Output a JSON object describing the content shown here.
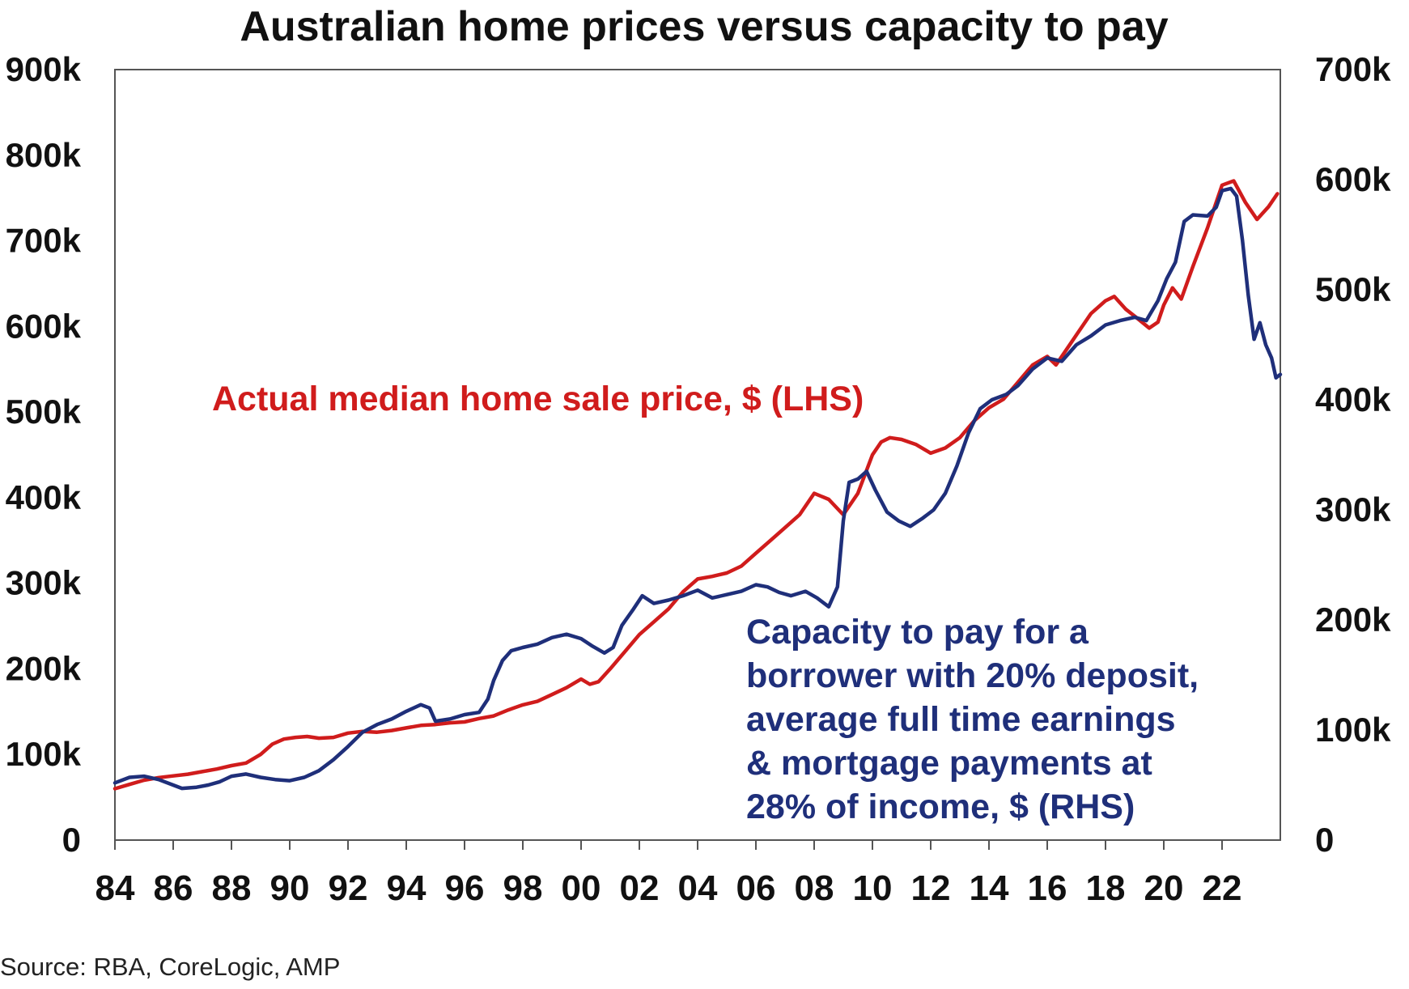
{
  "chart_data": {
    "type": "line",
    "title": "Australian home prices versus capacity to pay",
    "source": "Source: RBA, CoreLogic, AMP",
    "x_ticks": [
      "84",
      "86",
      "88",
      "90",
      "92",
      "94",
      "96",
      "98",
      "00",
      "02",
      "04",
      "06",
      "08",
      "10",
      "12",
      "14",
      "16",
      "18",
      "20",
      "22"
    ],
    "x_range": [
      1984,
      2024
    ],
    "y_left": {
      "range": [
        0,
        900000
      ],
      "ticks": [
        "0",
        "100k",
        "200k",
        "300k",
        "400k",
        "500k",
        "600k",
        "700k",
        "800k",
        "900k"
      ]
    },
    "y_right": {
      "range": [
        0,
        700000
      ],
      "ticks": [
        "0",
        "100k",
        "200k",
        "300k",
        "400k",
        "500k",
        "600k",
        "700k"
      ]
    },
    "grid": false,
    "series": [
      {
        "name": "Actual median home sale price, $ (LHS)",
        "axis": "left",
        "color": "#d01c1c",
        "points": [
          [
            1984.0,
            60000
          ],
          [
            1984.5,
            65000
          ],
          [
            1985.0,
            70000
          ],
          [
            1985.5,
            73000
          ],
          [
            1986.0,
            75000
          ],
          [
            1986.5,
            77000
          ],
          [
            1987.0,
            80000
          ],
          [
            1987.5,
            83000
          ],
          [
            1988.0,
            87000
          ],
          [
            1988.5,
            90000
          ],
          [
            1989.0,
            100000
          ],
          [
            1989.4,
            112000
          ],
          [
            1989.8,
            118000
          ],
          [
            1990.2,
            120000
          ],
          [
            1990.6,
            121000
          ],
          [
            1991.0,
            119000
          ],
          [
            1991.5,
            120000
          ],
          [
            1992.0,
            125000
          ],
          [
            1992.5,
            127000
          ],
          [
            1993.0,
            126000
          ],
          [
            1993.5,
            128000
          ],
          [
            1994.0,
            131000
          ],
          [
            1994.5,
            134000
          ],
          [
            1995.0,
            135000
          ],
          [
            1995.5,
            137000
          ],
          [
            1996.0,
            138000
          ],
          [
            1996.5,
            142000
          ],
          [
            1997.0,
            145000
          ],
          [
            1997.5,
            152000
          ],
          [
            1998.0,
            158000
          ],
          [
            1998.5,
            162000
          ],
          [
            1999.0,
            170000
          ],
          [
            1999.5,
            178000
          ],
          [
            2000.0,
            188000
          ],
          [
            2000.3,
            182000
          ],
          [
            2000.6,
            185000
          ],
          [
            2001.0,
            200000
          ],
          [
            2001.5,
            220000
          ],
          [
            2002.0,
            240000
          ],
          [
            2002.5,
            255000
          ],
          [
            2003.0,
            270000
          ],
          [
            2003.5,
            290000
          ],
          [
            2004.0,
            305000
          ],
          [
            2004.5,
            308000
          ],
          [
            2005.0,
            312000
          ],
          [
            2005.5,
            320000
          ],
          [
            2006.0,
            335000
          ],
          [
            2006.5,
            350000
          ],
          [
            2007.0,
            365000
          ],
          [
            2007.5,
            380000
          ],
          [
            2008.0,
            405000
          ],
          [
            2008.5,
            398000
          ],
          [
            2009.0,
            380000
          ],
          [
            2009.5,
            405000
          ],
          [
            2010.0,
            450000
          ],
          [
            2010.3,
            465000
          ],
          [
            2010.6,
            470000
          ],
          [
            2011.0,
            468000
          ],
          [
            2011.5,
            462000
          ],
          [
            2012.0,
            452000
          ],
          [
            2012.5,
            458000
          ],
          [
            2013.0,
            470000
          ],
          [
            2013.5,
            490000
          ],
          [
            2014.0,
            505000
          ],
          [
            2014.5,
            515000
          ],
          [
            2015.0,
            535000
          ],
          [
            2015.5,
            555000
          ],
          [
            2016.0,
            565000
          ],
          [
            2016.3,
            555000
          ],
          [
            2016.7,
            575000
          ],
          [
            2017.0,
            590000
          ],
          [
            2017.5,
            615000
          ],
          [
            2018.0,
            630000
          ],
          [
            2018.3,
            635000
          ],
          [
            2018.7,
            620000
          ],
          [
            2019.0,
            612000
          ],
          [
            2019.5,
            598000
          ],
          [
            2019.8,
            605000
          ],
          [
            2020.0,
            625000
          ],
          [
            2020.3,
            645000
          ],
          [
            2020.6,
            632000
          ],
          [
            2021.0,
            670000
          ],
          [
            2021.5,
            715000
          ],
          [
            2022.0,
            765000
          ],
          [
            2022.4,
            770000
          ],
          [
            2022.8,
            745000
          ],
          [
            2023.2,
            725000
          ],
          [
            2023.6,
            740000
          ],
          [
            2023.9,
            755000
          ]
        ]
      },
      {
        "name": "Capacity to pay for a borrower with 20% deposit, average full time earnings & mortgage payments at 28% of income, $ (RHS)",
        "axis": "right",
        "color": "#1f2f7a",
        "points": [
          [
            1984.0,
            52000
          ],
          [
            1984.5,
            57000
          ],
          [
            1985.0,
            58000
          ],
          [
            1985.5,
            55000
          ],
          [
            1986.0,
            50000
          ],
          [
            1986.3,
            47000
          ],
          [
            1986.8,
            48000
          ],
          [
            1987.2,
            50000
          ],
          [
            1987.6,
            53000
          ],
          [
            1988.0,
            58000
          ],
          [
            1988.5,
            60000
          ],
          [
            1989.0,
            57000
          ],
          [
            1989.5,
            55000
          ],
          [
            1990.0,
            54000
          ],
          [
            1990.5,
            57000
          ],
          [
            1991.0,
            63000
          ],
          [
            1991.5,
            73000
          ],
          [
            1992.0,
            85000
          ],
          [
            1992.5,
            98000
          ],
          [
            1993.0,
            105000
          ],
          [
            1993.5,
            110000
          ],
          [
            1994.0,
            117000
          ],
          [
            1994.5,
            123000
          ],
          [
            1994.8,
            120000
          ],
          [
            1995.0,
            108000
          ],
          [
            1995.5,
            110000
          ],
          [
            1996.0,
            114000
          ],
          [
            1996.5,
            116000
          ],
          [
            1996.8,
            128000
          ],
          [
            1997.0,
            145000
          ],
          [
            1997.3,
            163000
          ],
          [
            1997.6,
            172000
          ],
          [
            1998.0,
            175000
          ],
          [
            1998.5,
            178000
          ],
          [
            1999.0,
            184000
          ],
          [
            1999.5,
            187000
          ],
          [
            2000.0,
            183000
          ],
          [
            2000.4,
            176000
          ],
          [
            2000.8,
            170000
          ],
          [
            2001.1,
            175000
          ],
          [
            2001.4,
            195000
          ],
          [
            2001.8,
            210000
          ],
          [
            2002.1,
            222000
          ],
          [
            2002.5,
            215000
          ],
          [
            2003.0,
            218000
          ],
          [
            2003.5,
            222000
          ],
          [
            2004.0,
            227000
          ],
          [
            2004.5,
            220000
          ],
          [
            2005.0,
            223000
          ],
          [
            2005.5,
            226000
          ],
          [
            2006.0,
            232000
          ],
          [
            2006.4,
            230000
          ],
          [
            2006.8,
            225000
          ],
          [
            2007.2,
            222000
          ],
          [
            2007.7,
            226000
          ],
          [
            2008.1,
            220000
          ],
          [
            2008.5,
            212000
          ],
          [
            2008.8,
            230000
          ],
          [
            2009.0,
            290000
          ],
          [
            2009.2,
            325000
          ],
          [
            2009.5,
            328000
          ],
          [
            2009.8,
            335000
          ],
          [
            2010.1,
            318000
          ],
          [
            2010.5,
            298000
          ],
          [
            2010.9,
            290000
          ],
          [
            2011.3,
            285000
          ],
          [
            2011.7,
            292000
          ],
          [
            2012.1,
            300000
          ],
          [
            2012.5,
            315000
          ],
          [
            2012.9,
            340000
          ],
          [
            2013.3,
            370000
          ],
          [
            2013.7,
            392000
          ],
          [
            2014.1,
            400000
          ],
          [
            2014.6,
            405000
          ],
          [
            2015.0,
            413000
          ],
          [
            2015.5,
            428000
          ],
          [
            2016.0,
            438000
          ],
          [
            2016.5,
            435000
          ],
          [
            2017.0,
            450000
          ],
          [
            2017.5,
            458000
          ],
          [
            2018.0,
            468000
          ],
          [
            2018.5,
            472000
          ],
          [
            2019.0,
            475000
          ],
          [
            2019.4,
            472000
          ],
          [
            2019.8,
            490000
          ],
          [
            2020.1,
            510000
          ],
          [
            2020.4,
            525000
          ],
          [
            2020.7,
            562000
          ],
          [
            2021.0,
            568000
          ],
          [
            2021.5,
            567000
          ],
          [
            2021.8,
            575000
          ],
          [
            2022.0,
            590000
          ],
          [
            2022.3,
            592000
          ],
          [
            2022.5,
            585000
          ],
          [
            2022.7,
            545000
          ],
          [
            2022.9,
            495000
          ],
          [
            2023.1,
            455000
          ],
          [
            2023.3,
            470000
          ],
          [
            2023.5,
            450000
          ],
          [
            2023.7,
            438000
          ],
          [
            2023.85,
            420000
          ],
          [
            2024.0,
            423000
          ]
        ]
      }
    ],
    "annotations": {
      "red_label": "Actual median home sale price, $ (LHS)",
      "blue_label_lines": [
        "Capacity to pay for a",
        "borrower with 20% deposit,",
        "average full time earnings",
        "& mortgage payments at",
        "28% of income, $ (RHS)"
      ]
    }
  }
}
